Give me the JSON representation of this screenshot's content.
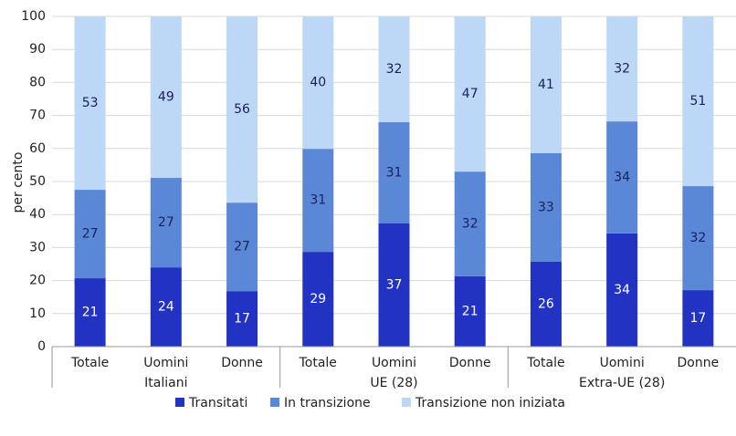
{
  "chart_data": {
    "type": "stacked-bar",
    "ylabel": "per cento",
    "groups": [
      {
        "name": "Italiani",
        "categories": [
          "Totale",
          "Uomini",
          "Donne"
        ]
      },
      {
        "name": "UE (28)",
        "categories": [
          "Totale",
          "Uomini",
          "Donne"
        ]
      },
      {
        "name": "Extra-UE (28)",
        "categories": [
          "Totale",
          "Uomini",
          "Donne"
        ]
      }
    ],
    "series": [
      {
        "name": "Transitati",
        "color": "#2232c2",
        "label_color": "#ffffff",
        "values": [
          20.7,
          24.0,
          16.8,
          28.7,
          37.3,
          21.3,
          25.7,
          34.3,
          17.1
        ],
        "value_labels": [
          "21",
          "24",
          "17",
          "29",
          "37",
          "21",
          "26",
          "34",
          "17"
        ]
      },
      {
        "name": "In transizione",
        "color": "#5b88d6",
        "label_color": "#1b1f5e",
        "values": [
          26.8,
          27.1,
          26.8,
          31.2,
          30.7,
          31.7,
          32.9,
          33.9,
          31.5
        ],
        "value_labels": [
          "27",
          "27",
          "27",
          "31",
          "31",
          "32",
          "33",
          "34",
          "32"
        ]
      },
      {
        "name": "Transizione non iniziata",
        "color": "#bdd7f7",
        "label_color": "#1b1f5e",
        "values": [
          52.5,
          48.9,
          56.4,
          40.1,
          32.0,
          47.0,
          41.4,
          31.8,
          51.4
        ],
        "value_labels": [
          "53",
          "49",
          "56",
          "40",
          "32",
          "47",
          "41",
          "32",
          "51"
        ]
      }
    ],
    "ylim": [
      0,
      100
    ],
    "yticks": [
      0,
      10,
      20,
      30,
      40,
      50,
      60,
      70,
      80,
      90,
      100
    ],
    "grid": true
  }
}
